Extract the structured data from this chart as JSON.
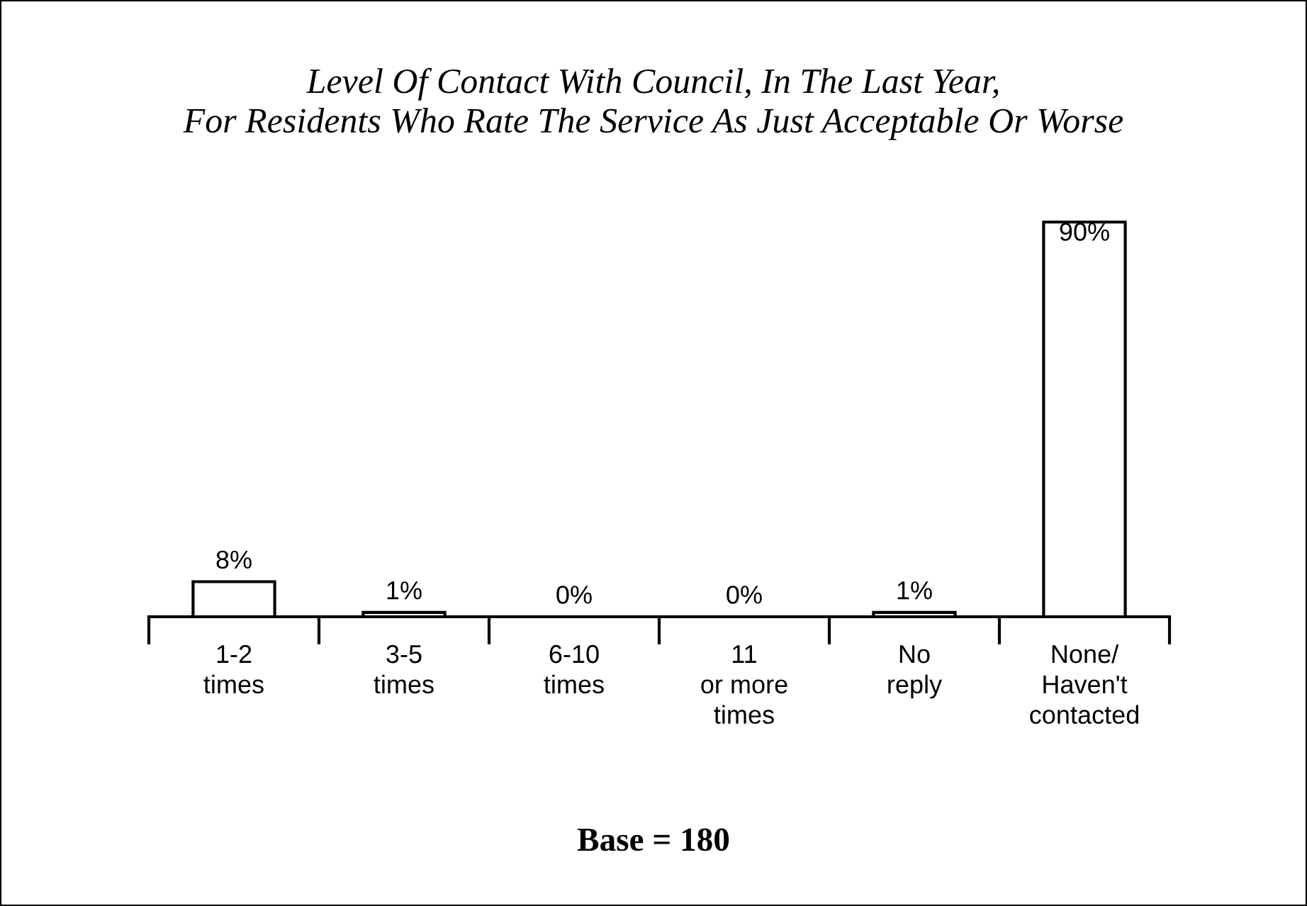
{
  "chart_data": {
    "type": "bar",
    "title": "Level Of Contact With Council, In The Last Year,\nFor Residents Who Rate The Service As Just Acceptable Or Worse",
    "categories": [
      "1-2\ntimes",
      "3-5\ntimes",
      "6-10\ntimes",
      "11\nor more\ntimes",
      "No\nreply",
      "None/\nHaven't\ncontacted"
    ],
    "values": [
      8,
      1,
      0,
      0,
      1,
      90
    ],
    "value_labels": [
      "8%",
      "1%",
      "0%",
      "0%",
      "1%",
      "90%"
    ],
    "colors": [
      "#ffffff",
      "#ffffff",
      "#000000",
      "#000000",
      "#ffffff",
      "#ffffff"
    ],
    "grid": false,
    "legend": false,
    "annotations": [
      "Base = 180"
    ]
  }
}
